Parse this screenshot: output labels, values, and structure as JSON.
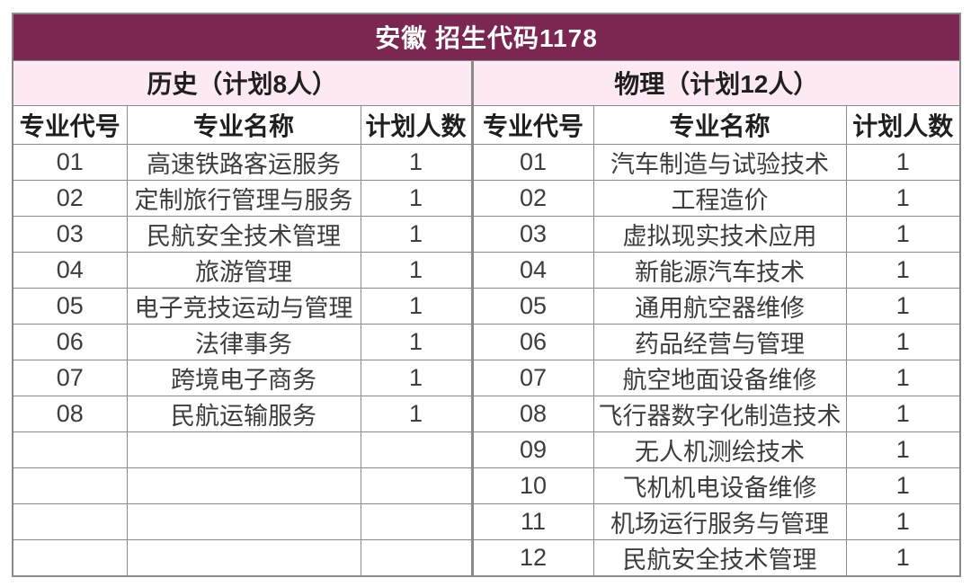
{
  "title": "安徽 招生代码1178",
  "groups": {
    "history_label": "历史（计划8人）",
    "physics_label": "物理（计划12人）"
  },
  "columns": [
    "专业代号",
    "专业名称",
    "计划人数"
  ],
  "row_count": 12,
  "history": {
    "rows": [
      {
        "code": "01",
        "name": "高速铁路客运服务",
        "plan": "1"
      },
      {
        "code": "02",
        "name": "定制旅行管理与服务",
        "plan": "1"
      },
      {
        "code": "03",
        "name": "民航安全技术管理",
        "plan": "1"
      },
      {
        "code": "04",
        "name": "旅游管理",
        "plan": "1"
      },
      {
        "code": "05",
        "name": "电子竞技运动与管理",
        "plan": "1"
      },
      {
        "code": "06",
        "name": "法律事务",
        "plan": "1"
      },
      {
        "code": "07",
        "name": "跨境电子商务",
        "plan": "1"
      },
      {
        "code": "08",
        "name": "民航运输服务",
        "plan": "1"
      }
    ]
  },
  "physics": {
    "rows": [
      {
        "code": "01",
        "name": "汽车制造与试验技术",
        "plan": "1"
      },
      {
        "code": "02",
        "name": "工程造价",
        "plan": "1"
      },
      {
        "code": "03",
        "name": "虚拟现实技术应用",
        "plan": "1"
      },
      {
        "code": "04",
        "name": "新能源汽车技术",
        "plan": "1"
      },
      {
        "code": "05",
        "name": "通用航空器维修",
        "plan": "1"
      },
      {
        "code": "06",
        "name": "药品经营与管理",
        "plan": "1"
      },
      {
        "code": "07",
        "name": "航空地面设备维修",
        "plan": "1"
      },
      {
        "code": "08",
        "name": "飞行器数字化制造技术",
        "plan": "1"
      },
      {
        "code": "09",
        "name": "无人机测绘技术",
        "plan": "1"
      },
      {
        "code": "10",
        "name": "飞机机电设备维修",
        "plan": "1"
      },
      {
        "code": "11",
        "name": "机场运行服务与管理",
        "plan": "1"
      },
      {
        "code": "12",
        "name": "民航安全技术管理",
        "plan": "1"
      }
    ]
  },
  "colors": {
    "title_bg": "#7C2652",
    "title_text": "#FFFFFF",
    "subheader_bg": "#FDE9F3",
    "border": "#8A8A8A",
    "body_text": "#3D3D3D"
  }
}
